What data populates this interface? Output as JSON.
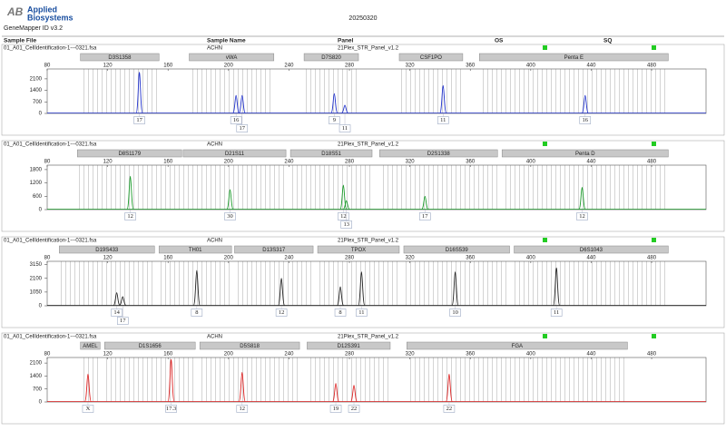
{
  "header": {
    "logo": "AB",
    "brand_line1": "Applied",
    "brand_line2": "Biosystems",
    "date": "20250320",
    "software": "GeneMapper ID v3.2",
    "columns": [
      "Sample File",
      "Sample Name",
      "Panel",
      "OS",
      "SQ"
    ]
  },
  "chart_data": [
    {
      "type": "electropherogram",
      "sample_file": "01_A01_CellIdentification-1---0321.fsa",
      "sample_name": "ACHN",
      "panel": "21Plex_STR_Panel_v1.2",
      "color": "#2233cc",
      "markers": [
        {
          "name": "D3S1358",
          "start": 102,
          "end": 154
        },
        {
          "name": "vWA",
          "start": 174,
          "end": 230
        },
        {
          "name": "D7S820",
          "start": 250,
          "end": 286
        },
        {
          "name": "CSF1PO",
          "start": 313,
          "end": 355
        },
        {
          "name": "Penta E",
          "start": 366,
          "end": 491
        }
      ],
      "xlim": [
        80,
        516
      ],
      "xticks": [
        80,
        120,
        160,
        200,
        240,
        280,
        320,
        360,
        400,
        440,
        480
      ],
      "ylim": [
        0,
        2700
      ],
      "yticks": [
        0,
        700,
        1400,
        2100
      ],
      "x": [
        141,
        205,
        209,
        270,
        277,
        342,
        436
      ],
      "values": [
        2500,
        1100,
        1100,
        1200,
        500,
        1700,
        1100
      ],
      "labels": [
        "17",
        "16",
        "17",
        "9",
        "11",
        "11",
        "16"
      ]
    },
    {
      "type": "electropherogram",
      "sample_file": "01_A01_CellIdentification-1---0321.fsa",
      "sample_name": "ACHN",
      "panel": "21Plex_STR_Panel_v1.2",
      "color": "#1a9a2a",
      "markers": [
        {
          "name": "D8S1179",
          "start": 100,
          "end": 169
        },
        {
          "name": "D21S11",
          "start": 170,
          "end": 238
        },
        {
          "name": "D18S51",
          "start": 241,
          "end": 295
        },
        {
          "name": "D2S1338",
          "start": 300,
          "end": 378
        },
        {
          "name": "Penta D",
          "start": 381,
          "end": 491
        }
      ],
      "xlim": [
        80,
        516
      ],
      "xticks": [
        80,
        120,
        160,
        200,
        240,
        280,
        320,
        360,
        400,
        440,
        480
      ],
      "ylim": [
        0,
        2000
      ],
      "yticks": [
        0,
        600,
        1200,
        1800
      ],
      "x": [
        135,
        201,
        276,
        278,
        330,
        434
      ],
      "values": [
        1500,
        900,
        1100,
        400,
        600,
        1000
      ],
      "labels": [
        "12",
        "30",
        "12",
        "13",
        "17",
        "12"
      ]
    },
    {
      "type": "electropherogram",
      "sample_file": "01_A01_CellIdentification-1---0321.fsa",
      "sample_name": "ACHN",
      "panel": "21Plex_STR_Panel_v1.2",
      "color": "#222222",
      "markers": [
        {
          "name": "D19S433",
          "start": 88,
          "end": 151
        },
        {
          "name": "TH01",
          "start": 154,
          "end": 202
        },
        {
          "name": "D13S317",
          "start": 204,
          "end": 256
        },
        {
          "name": "TPOX",
          "start": 259,
          "end": 313
        },
        {
          "name": "D16S539",
          "start": 316,
          "end": 386
        },
        {
          "name": "D6S1043",
          "start": 389,
          "end": 491
        }
      ],
      "xlim": [
        80,
        516
      ],
      "xticks": [
        80,
        120,
        160,
        200,
        240,
        280,
        320,
        360,
        400,
        440,
        480
      ],
      "ylim": [
        0,
        3400
      ],
      "yticks": [
        0,
        1050,
        2100,
        3150
      ],
      "x": [
        126,
        130,
        179,
        235,
        274,
        288,
        350,
        417
      ],
      "values": [
        1000,
        700,
        2700,
        2100,
        1450,
        2600,
        2600,
        2900
      ],
      "labels": [
        "14",
        "17",
        "8",
        "12",
        "8",
        "11",
        "10",
        "11"
      ]
    },
    {
      "type": "electropherogram",
      "sample_file": "01_A01_CellIdentification-1---0321.fsa",
      "sample_name": "ACHN",
      "panel": "21Plex_STR_Panel_v1.2",
      "color": "#dd2222",
      "markers": [
        {
          "name": "AMEL",
          "start": 102,
          "end": 115
        },
        {
          "name": "D1S1656",
          "start": 118,
          "end": 178
        },
        {
          "name": "D5S818",
          "start": 181,
          "end": 247
        },
        {
          "name": "D12S391",
          "start": 252,
          "end": 307
        },
        {
          "name": "FGA",
          "start": 318,
          "end": 464
        }
      ],
      "xlim": [
        80,
        516
      ],
      "xticks": [
        80,
        120,
        160,
        200,
        240,
        280,
        320,
        360,
        400,
        440,
        480
      ],
      "ylim": [
        0,
        2400
      ],
      "yticks": [
        0,
        700,
        1400,
        2100
      ],
      "x": [
        107,
        162,
        209,
        271,
        283,
        346
      ],
      "values": [
        1500,
        2300,
        1600,
        1000,
        900,
        1500
      ],
      "labels": [
        "X",
        "17.3",
        "12",
        "19",
        "22",
        "22"
      ]
    }
  ]
}
